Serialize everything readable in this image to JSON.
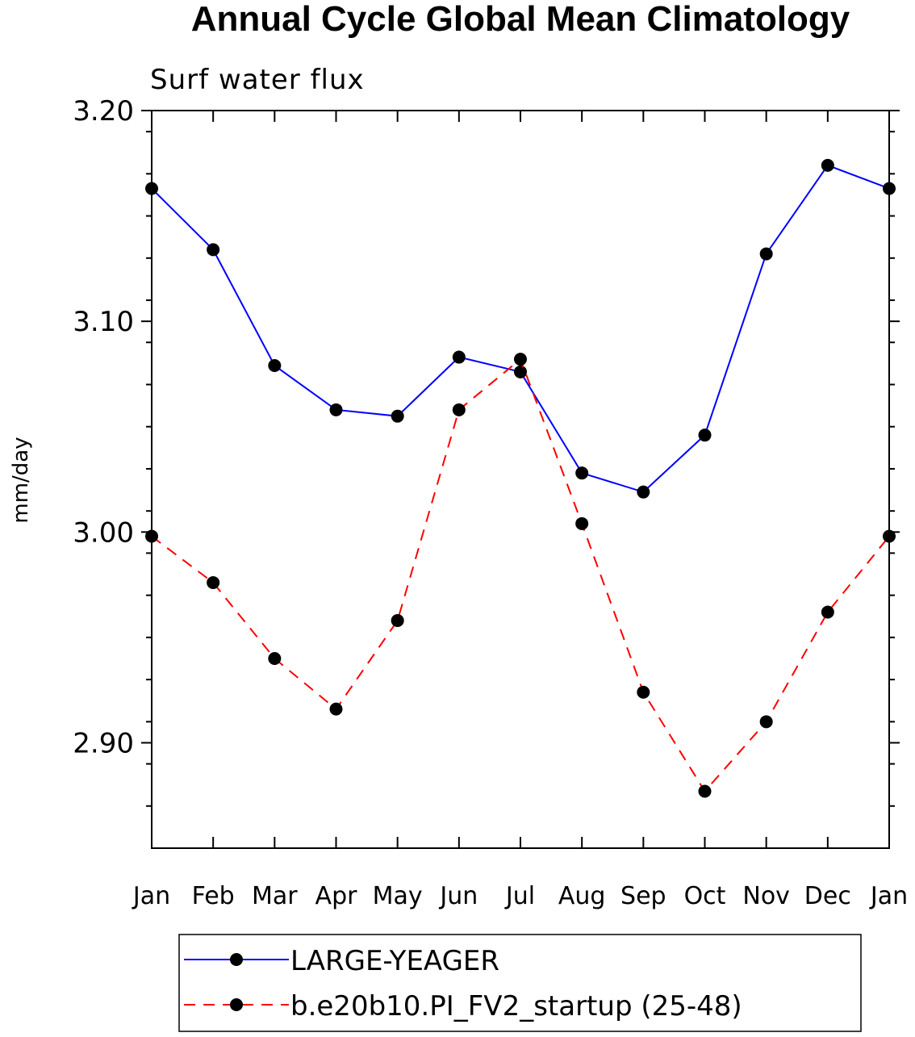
{
  "chart_data": {
    "type": "line",
    "title": "Annual Cycle Global Mean Climatology",
    "subtitle": "Surf water flux",
    "xlabel": "",
    "ylabel": "mm/day",
    "categories": [
      "Jan",
      "Feb",
      "Mar",
      "Apr",
      "May",
      "Jun",
      "Jul",
      "Aug",
      "Sep",
      "Oct",
      "Nov",
      "Dec",
      "Jan"
    ],
    "ylim": [
      2.85,
      3.2
    ],
    "yticks_major": [
      2.9,
      3.0,
      3.1,
      3.2
    ],
    "ytick_labels": [
      "2.90",
      "3.00",
      "3.10",
      "3.20"
    ],
    "yticks_minor_step": 0.02,
    "series": [
      {
        "name": "LARGE-YEAGER",
        "color": "#0000ff",
        "line_style": "solid",
        "marker": "circle",
        "values": [
          3.163,
          3.134,
          3.079,
          3.058,
          3.055,
          3.083,
          3.076,
          3.028,
          3.019,
          3.046,
          3.132,
          3.174,
          3.163
        ]
      },
      {
        "name": "b.e20b10.PI_FV2_startup (25-48)",
        "color": "#ff0000",
        "line_style": "dashed",
        "marker": "circle",
        "values": [
          2.998,
          2.976,
          2.94,
          2.916,
          2.958,
          3.058,
          3.082,
          3.004,
          2.924,
          2.877,
          2.91,
          2.962,
          2.998
        ]
      }
    ],
    "legend_position": "bottom",
    "grid": false
  }
}
